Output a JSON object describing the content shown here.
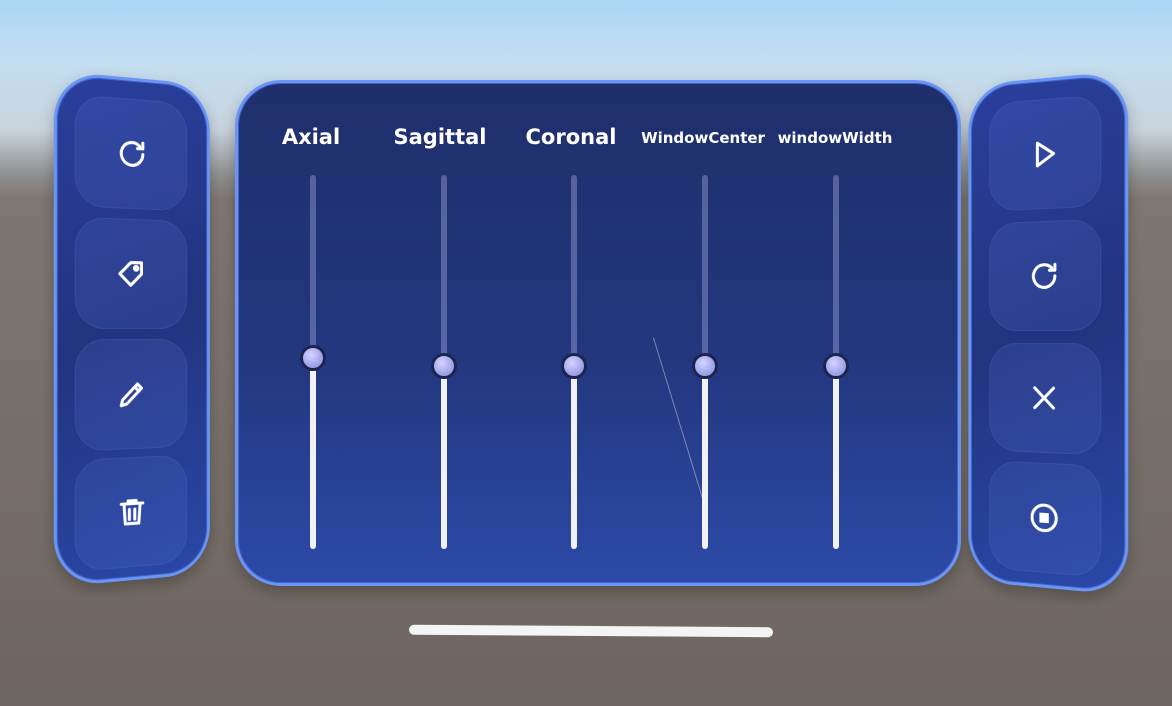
{
  "left_toolbar": {
    "buttons": [
      {
        "icon": "refresh-icon"
      },
      {
        "icon": "tag-icon"
      },
      {
        "icon": "pencil-icon"
      },
      {
        "icon": "trash-icon"
      }
    ]
  },
  "right_toolbar": {
    "buttons": [
      {
        "icon": "play-icon"
      },
      {
        "icon": "refresh-icon"
      },
      {
        "icon": "close-icon"
      },
      {
        "icon": "stop-icon"
      }
    ]
  },
  "sliders": [
    {
      "label": "Axial",
      "value_fraction": 0.51
    },
    {
      "label": "Sagittal",
      "value_fraction": 0.49
    },
    {
      "label": "Coronal",
      "value_fraction": 0.49
    },
    {
      "label": "WindowCenter",
      "value_fraction": 0.49
    },
    {
      "label": "windowWidth",
      "value_fraction": 0.49
    }
  ],
  "colors": {
    "panel": "#23377e",
    "panel_border": "#6b95f2",
    "thumb": "#a6a8ec",
    "track_fill": "#f2f2f4"
  }
}
